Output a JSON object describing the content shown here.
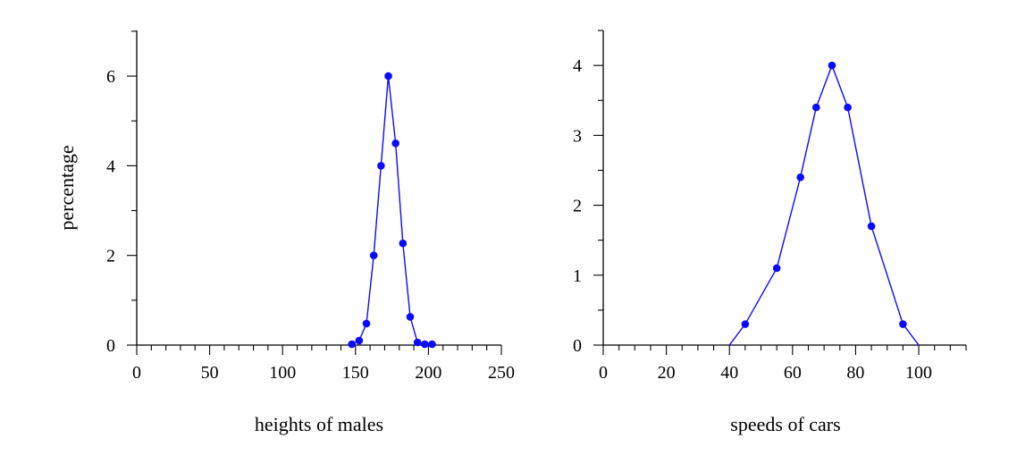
{
  "colors": {
    "series": "#0a0aff",
    "axis": "#000000"
  },
  "chart_data": [
    {
      "type": "line",
      "xlabel": "heights of males",
      "ylabel": "percentage",
      "xlim": [
        0,
        250
      ],
      "ylim": [
        0,
        7
      ],
      "x_ticks": [
        0,
        50,
        100,
        150,
        200,
        250
      ],
      "x_minor_step": 10,
      "y_ticks": [
        0,
        2,
        4,
        6
      ],
      "y_minor_step": 1,
      "grid": false,
      "series": [
        {
          "x": [
            147.5,
            152.5,
            157.5,
            162.5,
            167.5,
            172.5,
            177.5,
            182.5,
            187.5,
            192.5,
            197.5,
            202.5
          ],
          "y": [
            0.02,
            0.1,
            0.48,
            2.0,
            4.0,
            6.0,
            4.5,
            2.27,
            0.63,
            0.06,
            0.02,
            0.02
          ],
          "markers": true
        }
      ]
    },
    {
      "type": "line",
      "xlabel": "speeds of cars",
      "ylabel": "",
      "xlim": [
        0,
        115
      ],
      "ylim": [
        0,
        4.5
      ],
      "x_ticks": [
        0,
        20,
        40,
        60,
        80,
        100
      ],
      "x_minor_step": 5,
      "y_ticks": [
        0,
        1,
        2,
        3,
        4
      ],
      "y_minor_step": 0.5,
      "grid": false,
      "series": [
        {
          "x": [
            40,
            45,
            55,
            62.5,
            67.5,
            72.5,
            77.5,
            85,
            95,
            100
          ],
          "y": [
            0,
            0.3,
            1.1,
            2.4,
            3.4,
            4.0,
            3.4,
            1.7,
            0.3,
            0
          ],
          "marker_flags": [
            false,
            true,
            true,
            true,
            true,
            true,
            true,
            true,
            true,
            false
          ]
        }
      ]
    }
  ]
}
